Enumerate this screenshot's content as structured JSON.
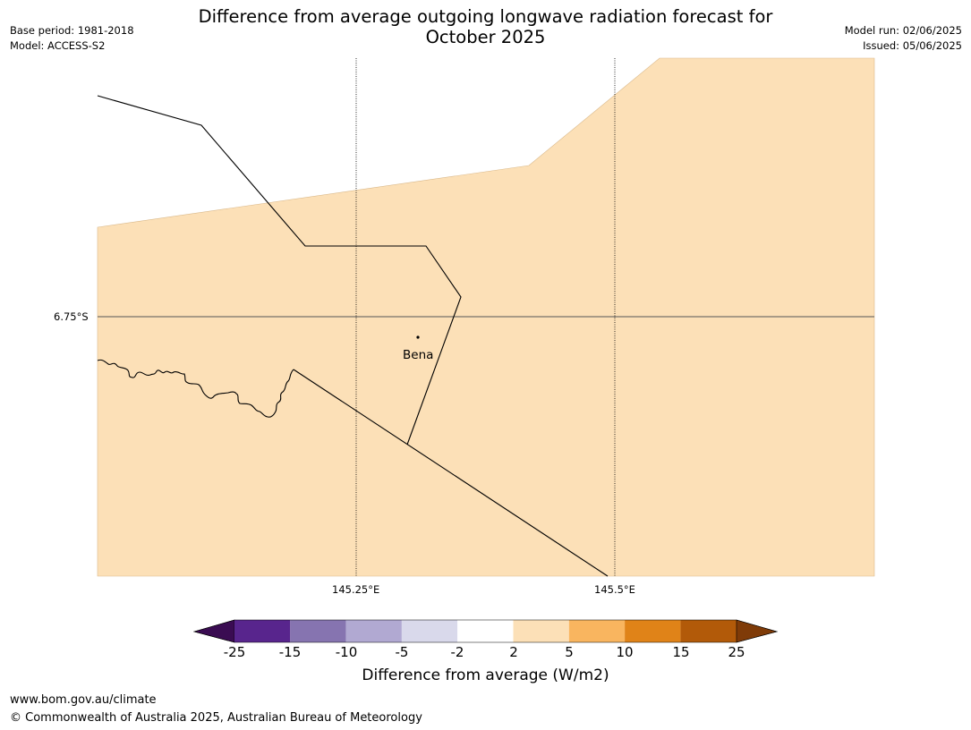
{
  "header": {
    "title_line1": "Difference from average outgoing longwave radiation forecast for",
    "title_line2": "October 2025",
    "base_period": "Base period: 1981-2018",
    "model": "Model: ACCESS-S2",
    "model_run": "Model run: 02/06/2025",
    "issued": "Issued: 05/06/2025"
  },
  "map": {
    "lat_label": "6.75°S",
    "lon_labels": [
      "145.25°E",
      "145.5°E"
    ],
    "place_label": "Bena",
    "colors": {
      "fill_2_5": "#fce0b7",
      "boundary": "#000000",
      "gridline": "#555555"
    }
  },
  "colorbar": {
    "label": "Difference from average (W/m2)",
    "ticks": [
      "-25",
      "-15",
      "-10",
      "-5",
      "-2",
      "2",
      "5",
      "10",
      "15",
      "25"
    ],
    "segments": [
      {
        "range": "< -25",
        "color": "#3a0c52"
      },
      {
        "range": "-25 to -15",
        "color": "#58258d"
      },
      {
        "range": "-15 to -10",
        "color": "#8674b0"
      },
      {
        "range": "-10 to -5",
        "color": "#b1a9d2"
      },
      {
        "range": "-5 to -2",
        "color": "#d9d9eb"
      },
      {
        "range": "-2 to 2",
        "color": "#ffffff"
      },
      {
        "range": "2 to 5",
        "color": "#fce0b7"
      },
      {
        "range": "5 to 10",
        "color": "#f9b55f"
      },
      {
        "range": "10 to 15",
        "color": "#e08318"
      },
      {
        "range": "15 to 25",
        "color": "#b25a09"
      },
      {
        "range": "> 25",
        "color": "#7f3b08"
      }
    ]
  },
  "footer": {
    "url": "www.bom.gov.au/climate",
    "copyright": "© Commonwealth of Australia 2025, Australian Bureau of Meteorology"
  }
}
